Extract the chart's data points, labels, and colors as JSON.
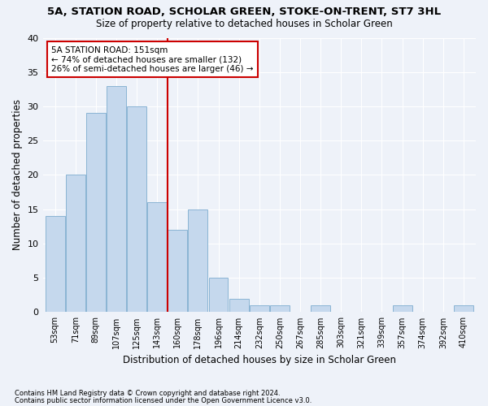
{
  "title": "5A, STATION ROAD, SCHOLAR GREEN, STOKE-ON-TRENT, ST7 3HL",
  "subtitle": "Size of property relative to detached houses in Scholar Green",
  "xlabel": "Distribution of detached houses by size in Scholar Green",
  "ylabel": "Number of detached properties",
  "bin_labels": [
    "53sqm",
    "71sqm",
    "89sqm",
    "107sqm",
    "125sqm",
    "143sqm",
    "160sqm",
    "178sqm",
    "196sqm",
    "214sqm",
    "232sqm",
    "250sqm",
    "267sqm",
    "285sqm",
    "303sqm",
    "321sqm",
    "339sqm",
    "357sqm",
    "374sqm",
    "392sqm",
    "410sqm"
  ],
  "bar_values": [
    14,
    20,
    29,
    33,
    30,
    16,
    12,
    15,
    5,
    2,
    1,
    1,
    0,
    1,
    0,
    0,
    0,
    1,
    0,
    0,
    1
  ],
  "bar_color": "#c5d8ed",
  "bar_edgecolor": "#8ab4d4",
  "vline_color": "#cc0000",
  "annotation_text": "5A STATION ROAD: 151sqm\n← 74% of detached houses are smaller (132)\n26% of semi-detached houses are larger (46) →",
  "annotation_box_color": "#cc0000",
  "footnote1": "Contains HM Land Registry data © Crown copyright and database right 2024.",
  "footnote2": "Contains public sector information licensed under the Open Government Licence v3.0.",
  "ylim": [
    0,
    40
  ],
  "yticks": [
    0,
    5,
    10,
    15,
    20,
    25,
    30,
    35,
    40
  ],
  "background_color": "#eef2f9",
  "grid_color": "#ffffff",
  "title_fontsize": 9.5,
  "subtitle_fontsize": 8.5
}
